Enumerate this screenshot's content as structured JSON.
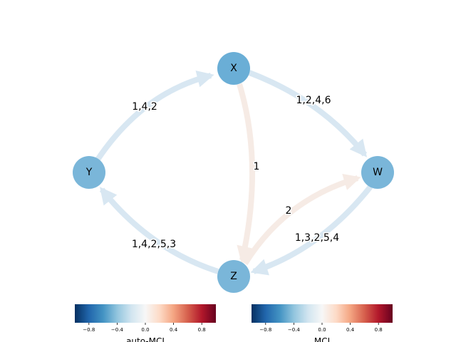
{
  "nodes": [
    {
      "label": "X"
    },
    {
      "label": "Y"
    },
    {
      "label": "W"
    },
    {
      "label": "Z"
    }
  ],
  "edges": [
    {
      "label": "1,4,2"
    },
    {
      "label": "1,2,4,6"
    },
    {
      "label": "1"
    },
    {
      "label": "2"
    },
    {
      "label": "1,3,2,5,4"
    },
    {
      "label": "1,4,2,5,3"
    }
  ],
  "colorbars": [
    {
      "label": "auto-MCI",
      "range": [
        -1,
        1
      ],
      "ticks": [
        {
          "value": -0.8,
          "label": "−0.8"
        },
        {
          "value": -0.4,
          "label": "−0.4"
        },
        {
          "value": 0,
          "label": "0.0"
        },
        {
          "value": 0.4,
          "label": "0.4"
        },
        {
          "value": 0.8,
          "label": "0.8"
        }
      ]
    },
    {
      "label": "MCI",
      "range": [
        -1,
        1
      ],
      "ticks": [
        {
          "value": -0.8,
          "label": "−0.8"
        },
        {
          "value": -0.4,
          "label": "−0.4"
        },
        {
          "value": 0,
          "label": "0.0"
        },
        {
          "value": 0.4,
          "label": "0.4"
        },
        {
          "value": 0.8,
          "label": "0.8"
        }
      ]
    }
  ]
}
